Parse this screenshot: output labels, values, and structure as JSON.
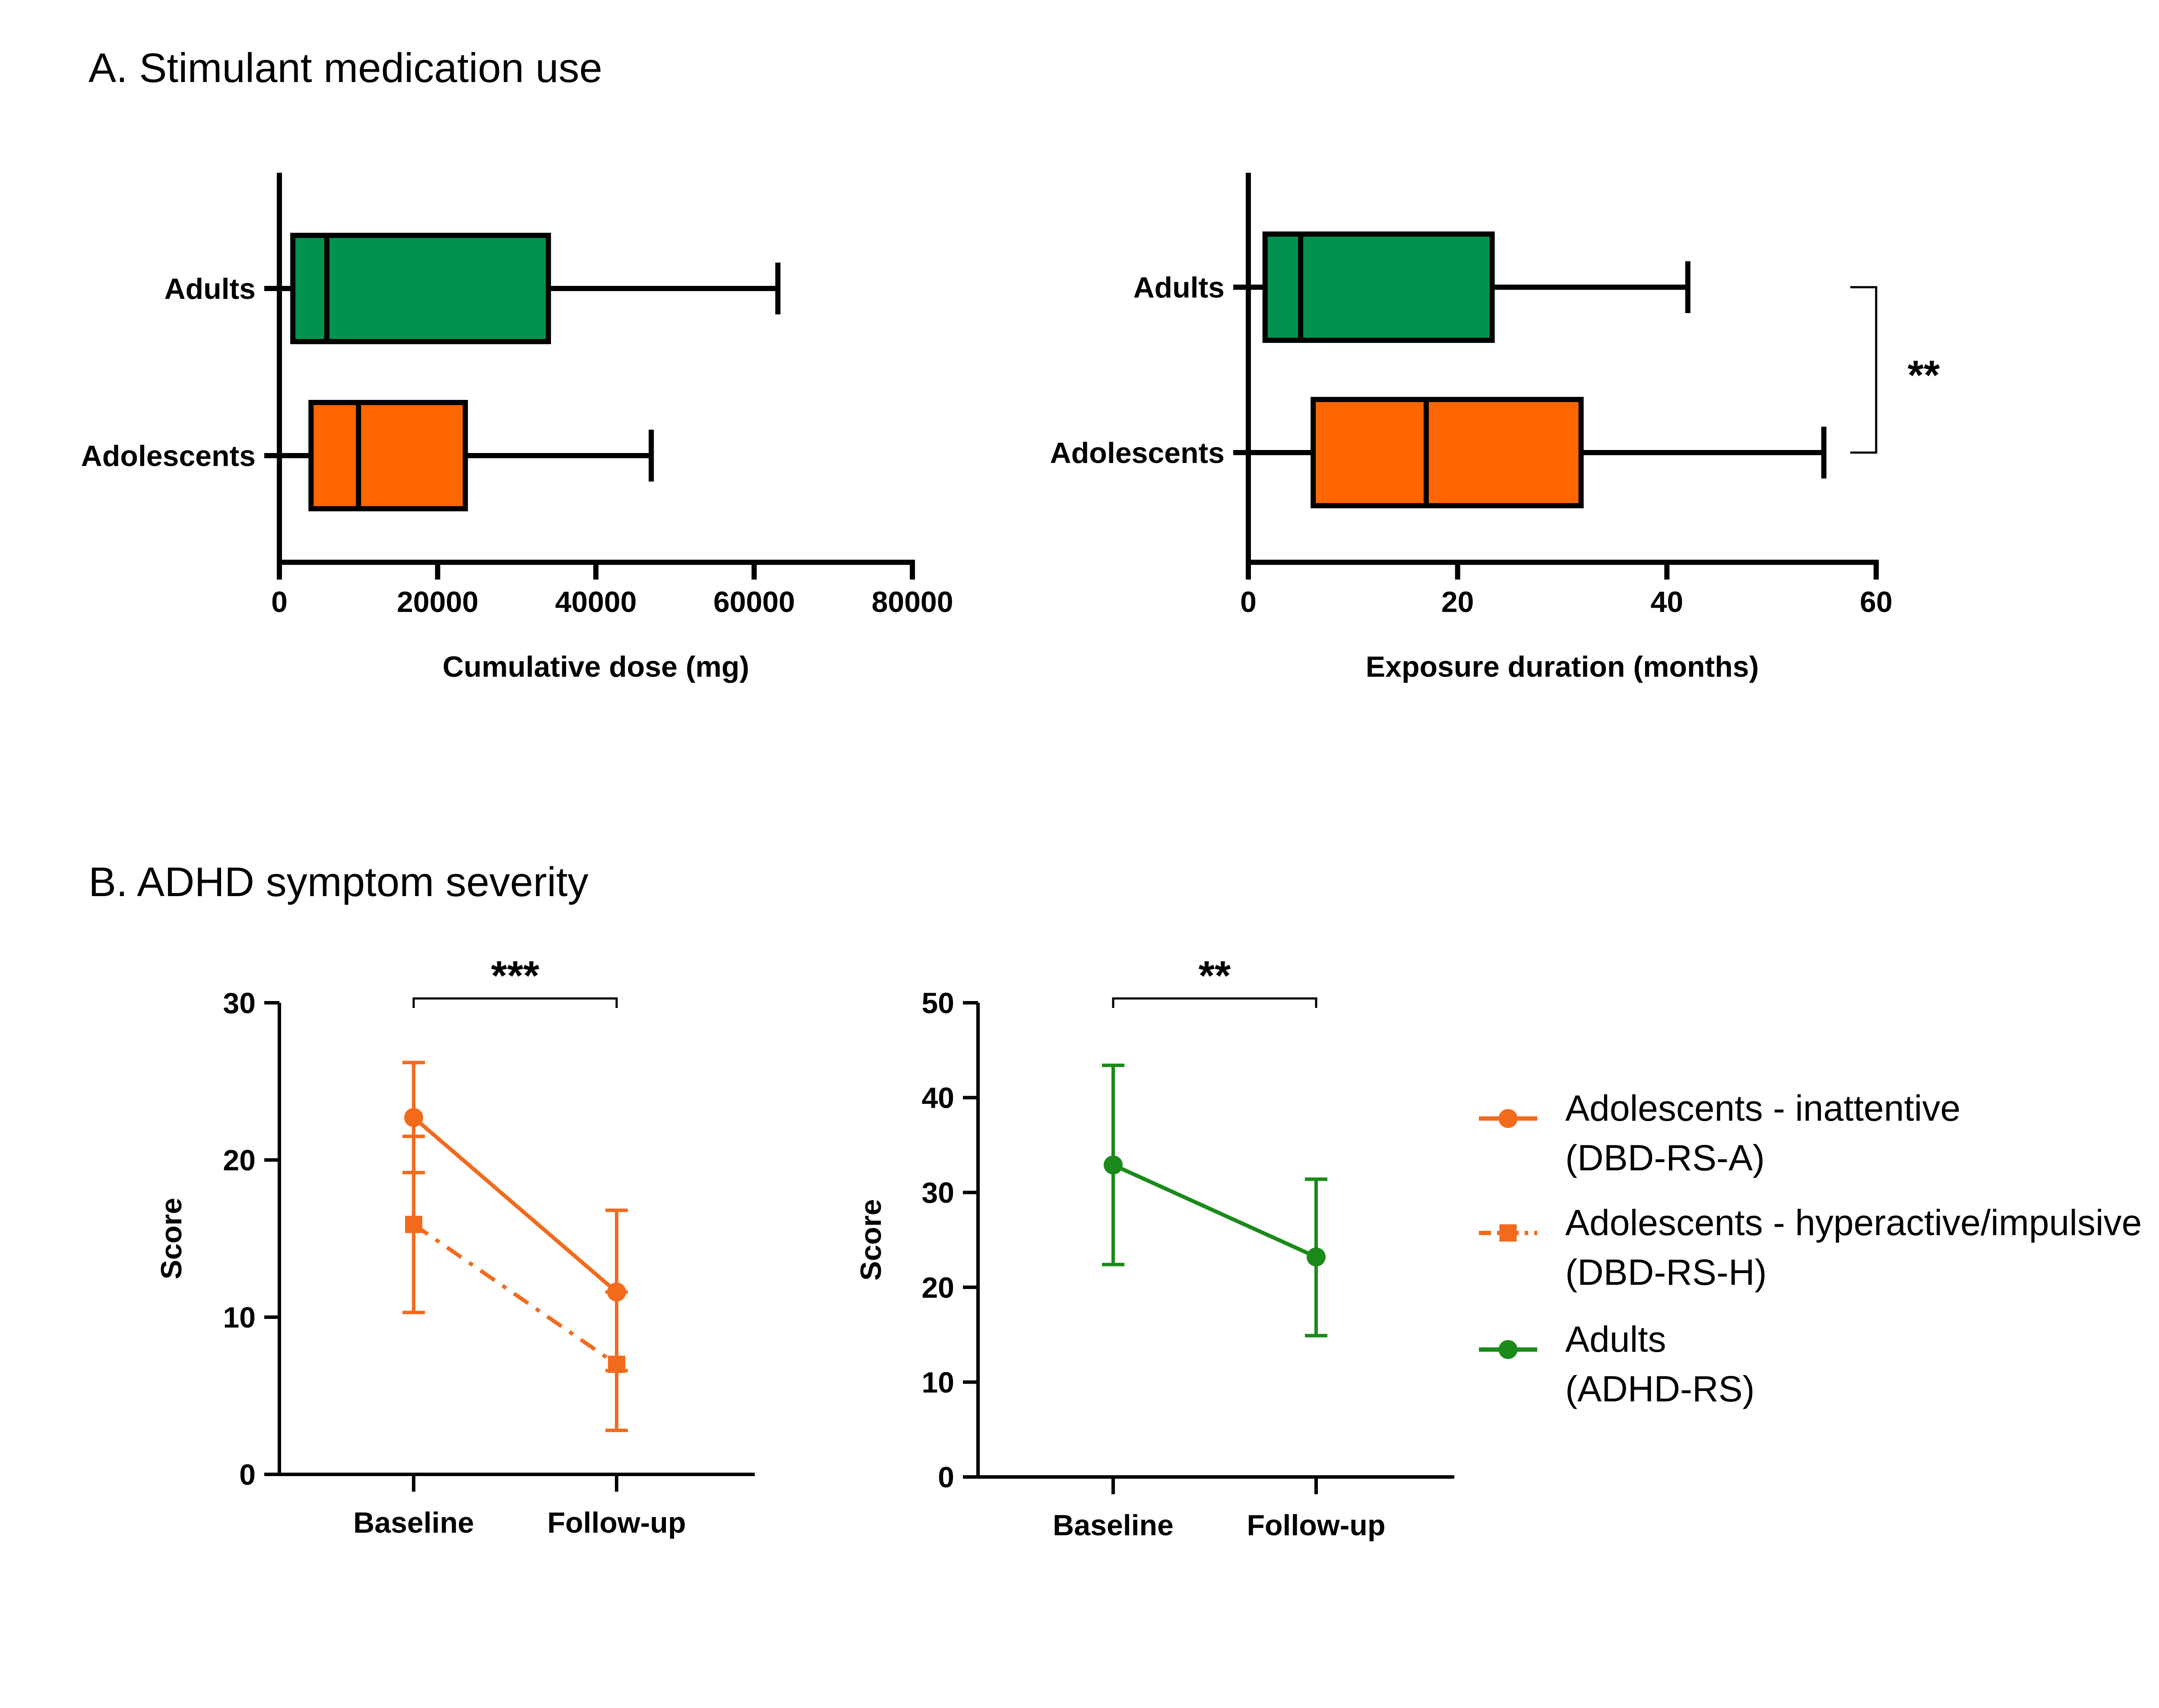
{
  "panel_titles": {
    "a": "A. Stimulant medication use",
    "b": "B. ADHD symptom severity"
  },
  "colors": {
    "adult_box": "#02924F",
    "adolescent_box": "#FF6600",
    "adolescent_line": "#F26B1D",
    "adult_line": "#1A8A1A",
    "axis": "#000000"
  },
  "chart_data": [
    {
      "id": "cumulative_dose",
      "type": "box",
      "orientation": "horizontal",
      "title": "",
      "xlabel": "Cumulative dose (mg)",
      "ylabel": "",
      "xlim": [
        0,
        80000
      ],
      "xticks": [
        "0",
        "20000",
        "40000",
        "60000",
        "80000"
      ],
      "xtick_values": [
        0,
        20000,
        40000,
        60000,
        80000
      ],
      "categories": [
        "Adults",
        "Adolescents"
      ],
      "boxes": [
        {
          "name": "Adults",
          "min": 0,
          "q1": 1700,
          "median": 6000,
          "q3": 34000,
          "max": 63000,
          "color": "#02924F"
        },
        {
          "name": "Adolescents",
          "min": 0,
          "q1": 4000,
          "median": 10000,
          "q3": 23500,
          "max": 47000,
          "color": "#FF6600"
        }
      ],
      "significance": null
    },
    {
      "id": "exposure_duration",
      "type": "box",
      "orientation": "horizontal",
      "title": "",
      "xlabel": "Exposure duration (months)",
      "ylabel": "",
      "xlim": [
        0,
        60
      ],
      "xticks": [
        "0",
        "20",
        "40",
        "60"
      ],
      "xtick_values": [
        0,
        20,
        40,
        60
      ],
      "categories": [
        "Adults",
        "Adolescents"
      ],
      "boxes": [
        {
          "name": "Adults",
          "min": 0,
          "q1": 1.6,
          "median": 5,
          "q3": 23.3,
          "max": 42,
          "color": "#02924F"
        },
        {
          "name": "Adolescents",
          "min": 0,
          "q1": 6.2,
          "median": 17,
          "q3": 31.8,
          "max": 55,
          "color": "#FF6600"
        }
      ],
      "significance": "**"
    },
    {
      "id": "adolescent_scores",
      "type": "line",
      "title": "",
      "xlabel": "",
      "ylabel": "Score",
      "ylim": [
        0,
        30
      ],
      "yticks": [
        "0",
        "10",
        "20",
        "30"
      ],
      "ytick_values": [
        0,
        10,
        20,
        30
      ],
      "categories": [
        "Baseline",
        "Follow-up"
      ],
      "series": [
        {
          "name": "Adolescents - inattentive (DBD-RS-A)",
          "values": [
            22.7,
            11.6
          ],
          "err_low": [
            19.2,
            6.6
          ],
          "err_high": [
            26.2,
            16.8
          ],
          "marker": "circle",
          "dash": "solid",
          "color": "#F26B1D"
        },
        {
          "name": "Adolescents - hyperactive/impulsive (DBD-RS-H)",
          "values": [
            15.9,
            7.0
          ],
          "err_low": [
            10.3,
            2.8
          ],
          "err_high": [
            21.5,
            11.6
          ],
          "marker": "square",
          "dash": "dashdot",
          "color": "#F26B1D"
        }
      ],
      "significance": "***"
    },
    {
      "id": "adult_scores",
      "type": "line",
      "title": "",
      "xlabel": "",
      "ylabel": "Score",
      "ylim": [
        0,
        50
      ],
      "yticks": [
        "0",
        "10",
        "20",
        "30",
        "40",
        "50"
      ],
      "ytick_values": [
        0,
        10,
        20,
        30,
        40,
        50
      ],
      "categories": [
        "Baseline",
        "Follow-up"
      ],
      "series": [
        {
          "name": "Adults (ADHD-RS)",
          "values": [
            32.9,
            23.2
          ],
          "err_low": [
            22.4,
            14.9
          ],
          "err_high": [
            43.4,
            31.4
          ],
          "marker": "circle",
          "dash": "solid",
          "color": "#1A8A1A"
        }
      ],
      "significance": "**"
    }
  ],
  "legend": [
    {
      "line1": "Adolescents - inattentive",
      "line2": "(DBD-RS-A)",
      "marker": "circle",
      "dash": "solid",
      "color": "#F26B1D"
    },
    {
      "line1": "Adolescents - hyperactive/impulsive",
      "line2": "(DBD-RS-H)",
      "marker": "square",
      "dash": "dashdot",
      "color": "#F26B1D"
    },
    {
      "line1": "Adults",
      "line2": "(ADHD-RS)",
      "marker": "circle",
      "dash": "solid",
      "color": "#1A8A1A"
    }
  ]
}
